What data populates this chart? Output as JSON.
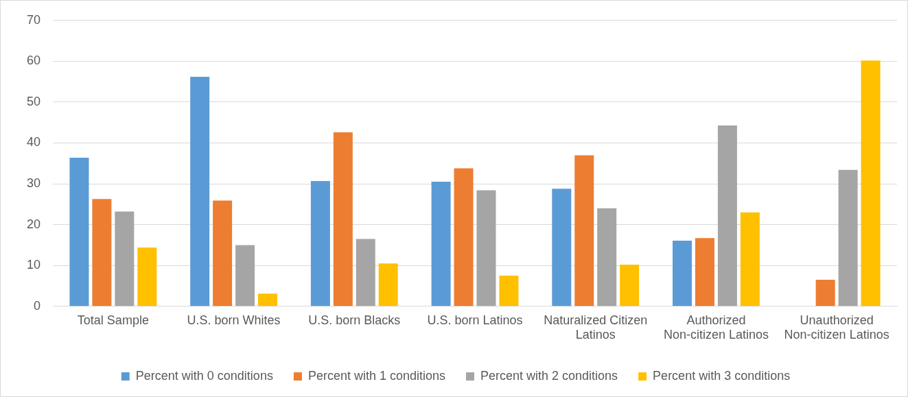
{
  "chart_data": {
    "type": "bar",
    "categories": [
      "Total Sample",
      "U.S. born Whites",
      "U.S. born Blacks",
      "U.S. born Latinos",
      "Naturalized Citizen Latinos",
      "Authorized Non-citizen Latinos",
      "Unauthorized Non-citizen Latinos"
    ],
    "series": [
      {
        "name": "Percent with 0 conditions",
        "color": "#5b9bd5",
        "values": [
          36.4,
          56.2,
          30.7,
          30.5,
          28.8,
          16.1,
          0
        ]
      },
      {
        "name": "Percent with 1 conditions",
        "color": "#ed7d31",
        "values": [
          26.3,
          25.9,
          42.6,
          33.8,
          37.0,
          16.7,
          6.5
        ]
      },
      {
        "name": "Percent with 2 conditions",
        "color": "#a5a5a5",
        "values": [
          23.2,
          15.0,
          16.5,
          28.4,
          24.0,
          44.3,
          33.4
        ]
      },
      {
        "name": "Percent with 3 conditions",
        "color": "#ffc000",
        "values": [
          14.4,
          3.1,
          10.5,
          7.5,
          10.2,
          23.0,
          60.2
        ]
      }
    ],
    "ylim": [
      0,
      70
    ],
    "yticks": [
      0,
      10,
      20,
      30,
      40,
      50,
      60,
      70
    ],
    "grid": "y",
    "legend": "bottom"
  }
}
